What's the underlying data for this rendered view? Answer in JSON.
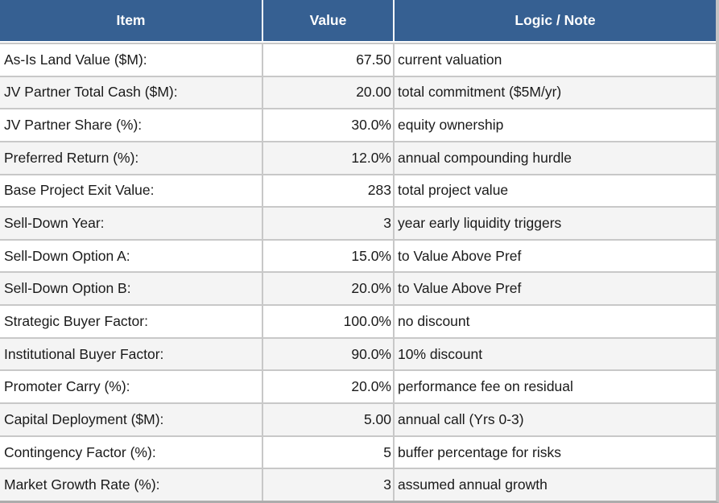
{
  "colors": {
    "header_bg": "#366092",
    "header_text": "#ffffff",
    "row_bg": "#ffffff",
    "row_alt_bg": "#f4f4f4",
    "grid_border": "#c8c8c8",
    "outer_right_border": "#c4c4c4",
    "outer_bottom_border": "#acacac",
    "body_text": "#1a1a1a"
  },
  "table": {
    "columns": [
      "Item",
      "Value",
      "Logic / Note"
    ],
    "rows": [
      {
        "item": "As-Is Land Value ($M):",
        "value": "67.50",
        "note": "current valuation"
      },
      {
        "item": "JV Partner Total Cash ($M):",
        "value": "20.00",
        "note": "total commitment ($5M/yr)"
      },
      {
        "item": "JV Partner Share (%):",
        "value": "30.0%",
        "note": "equity ownership"
      },
      {
        "item": "Preferred Return (%):",
        "value": "12.0%",
        "note": "annual compounding hurdle"
      },
      {
        "item": "Base Project Exit Value:",
        "value": "283",
        "note": "total project value"
      },
      {
        "item": "Sell-Down Year:",
        "value": "3",
        "note": "year early liquidity triggers"
      },
      {
        "item": "Sell-Down Option A:",
        "value": "15.0%",
        "note": "to Value Above Pref"
      },
      {
        "item": "Sell-Down Option B:",
        "value": "20.0%",
        "note": "to Value Above Pref"
      },
      {
        "item": "Strategic Buyer Factor:",
        "value": "100.0%",
        "note": "no discount"
      },
      {
        "item": "Institutional Buyer Factor:",
        "value": "90.0%",
        "note": "10% discount"
      },
      {
        "item": "Promoter Carry (%):",
        "value": "20.0%",
        "note": "performance fee on residual"
      },
      {
        "item": "Capital Deployment ($M):",
        "value": "5.00",
        "note": "annual call (Yrs 0-3)"
      },
      {
        "item": "Contingency Factor (%):",
        "value": "5",
        "note": "buffer percentage for risks"
      },
      {
        "item": "Market Growth Rate (%):",
        "value": "3",
        "note": "assumed annual growth"
      }
    ]
  }
}
